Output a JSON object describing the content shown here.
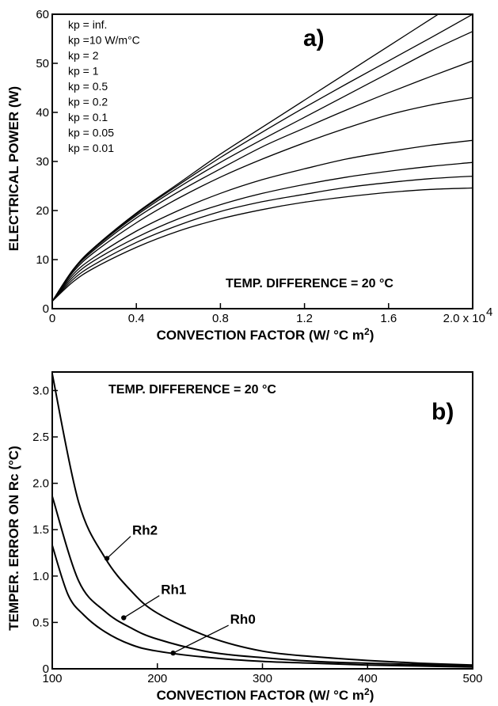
{
  "chart_data": [
    {
      "type": "line",
      "panel_label": "a)",
      "xlabel": "CONVECTION FACTOR",
      "xunit": "W/ °C m",
      "xunit_sup": "2",
      "ylabel": "ELECTRICAL POWER (W)",
      "xlim": [
        0,
        20000
      ],
      "ylim": [
        0,
        60
      ],
      "x_ticks": [
        0,
        4000,
        8000,
        12000,
        16000,
        20000
      ],
      "x_tick_labels": [
        "0",
        "0.4",
        "0.8",
        "1.2",
        "1.6",
        "2.0 x 10"
      ],
      "x_tick_exponent": "4",
      "y_ticks": [
        0,
        10,
        20,
        30,
        40,
        50,
        60
      ],
      "y_tick_labels": [
        "0",
        "10",
        "20",
        "30",
        "40",
        "50",
        "60"
      ],
      "annotation": "TEMP. DIFFERENCE  =  20 °C",
      "legend": [
        "kp = inf.",
        "kp =10   W/m°C",
        "kp = 2",
        "kp = 1",
        "kp = 0.5",
        "kp = 0.2",
        "kp = 0.1",
        "kp = 0.05",
        "kp = 0.01"
      ],
      "legend_placement": "top-left",
      "x": [
        0,
        1000,
        2000,
        4000,
        6000,
        8000,
        10000,
        12000,
        14000,
        16000,
        18000,
        20000
      ],
      "series": [
        {
          "values": [
            1.5,
            8.0,
            12.5,
            19.5,
            25.5,
            31.5,
            37.0,
            42.5,
            48.0,
            53.5,
            59.0,
            64.5
          ]
        },
        {
          "values": [
            1.5,
            8.0,
            12.5,
            19.3,
            25.2,
            30.8,
            36.0,
            41.0,
            45.8,
            50.5,
            55.2,
            60.0
          ]
        },
        {
          "values": [
            1.5,
            8.0,
            12.3,
            19.0,
            24.7,
            29.8,
            34.5,
            39.0,
            43.5,
            48.0,
            52.5,
            56.5
          ]
        },
        {
          "values": [
            1.5,
            7.8,
            12.0,
            18.5,
            23.8,
            28.5,
            33.0,
            36.8,
            40.5,
            44.0,
            47.3,
            50.5
          ]
        },
        {
          "values": [
            1.5,
            7.5,
            11.5,
            17.5,
            22.5,
            26.8,
            30.5,
            33.8,
            36.8,
            39.5,
            41.5,
            43.0
          ]
        },
        {
          "values": [
            1.5,
            7.0,
            10.5,
            15.8,
            20.0,
            23.5,
            26.3,
            28.5,
            30.5,
            32.0,
            33.3,
            34.3
          ]
        },
        {
          "values": [
            1.5,
            6.5,
            9.8,
            14.5,
            18.3,
            21.2,
            23.5,
            25.3,
            26.8,
            28.0,
            29.0,
            29.8
          ]
        },
        {
          "values": [
            1.5,
            6.0,
            9.0,
            13.5,
            17.0,
            19.8,
            21.8,
            23.3,
            24.7,
            25.7,
            26.5,
            27.0
          ]
        },
        {
          "values": [
            1.5,
            5.5,
            8.3,
            12.5,
            15.8,
            18.3,
            20.2,
            21.7,
            22.8,
            23.7,
            24.3,
            24.6
          ]
        }
      ]
    },
    {
      "type": "line",
      "panel_label": "b)",
      "xlabel": "CONVECTION FACTOR",
      "xunit": "W/ °C m",
      "xunit_sup": "2",
      "ylabel": "TEMPER.  ERROR  ON Rc  (°C)",
      "xlim": [
        100,
        500
      ],
      "ylim": [
        0,
        3.2
      ],
      "x_ticks": [
        100,
        200,
        300,
        400,
        500
      ],
      "x_tick_labels": [
        "100",
        "200",
        "300",
        "400",
        "500"
      ],
      "y_ticks": [
        0,
        0.5,
        1.0,
        1.5,
        2.0,
        2.5,
        3.0
      ],
      "y_tick_labels": [
        "0",
        "0.5",
        "1.0",
        "1.5",
        "2.0",
        "2.5",
        "3.0"
      ],
      "annotation": "TEMP. DIFFERENCE  =  20 °C",
      "series": [
        {
          "name": "Rh2",
          "x": [
            100,
            125,
            150,
            175,
            200,
            250,
            300,
            350,
            400,
            450,
            500
          ],
          "values": [
            3.18,
            1.8,
            1.2,
            0.84,
            0.6,
            0.34,
            0.19,
            0.13,
            0.09,
            0.06,
            0.04
          ],
          "label_point": [
            152,
            1.19
          ]
        },
        {
          "name": "Rh1",
          "x": [
            100,
            125,
            150,
            175,
            200,
            250,
            300,
            350,
            400,
            450,
            500
          ],
          "values": [
            1.86,
            0.95,
            0.62,
            0.44,
            0.32,
            0.18,
            0.12,
            0.08,
            0.06,
            0.045,
            0.035
          ],
          "label_point": [
            168,
            0.55
          ]
        },
        {
          "name": "Rh0",
          "x": [
            100,
            115,
            130,
            150,
            175,
            200,
            250,
            300,
            350,
            400,
            450,
            500
          ],
          "values": [
            1.33,
            0.8,
            0.58,
            0.4,
            0.26,
            0.19,
            0.12,
            0.08,
            0.06,
            0.04,
            0.03,
            0.02
          ],
          "label_point": [
            215,
            0.17
          ]
        }
      ]
    }
  ]
}
